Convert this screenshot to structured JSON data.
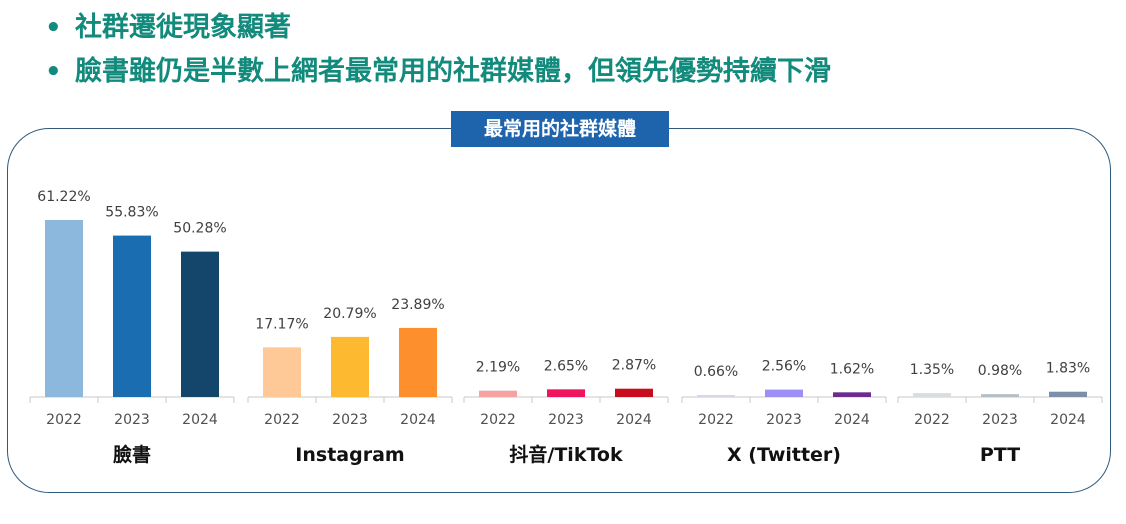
{
  "bullets": [
    {
      "marker": "•",
      "text": "社群遷徙現象顯著"
    },
    {
      "marker": "•",
      "text": "臉書雖仍是半數上網者最常用的社群媒體，但領先優勢持續下滑"
    }
  ],
  "chart_data": {
    "type": "bar",
    "title": "最常用的社群媒體",
    "groups": [
      {
        "name": "臉書",
        "categories": [
          "2022",
          "2023",
          "2024"
        ],
        "values": [
          61.22,
          55.83,
          50.28
        ],
        "labels": [
          "61.22%",
          "55.83%",
          "50.28%"
        ],
        "colors": [
          "#8db8de",
          "#1a6db0",
          "#14466c"
        ]
      },
      {
        "name": "Instagram",
        "categories": [
          "2022",
          "2023",
          "2024"
        ],
        "values": [
          17.17,
          20.79,
          23.89
        ],
        "labels": [
          "17.17%",
          "20.79%",
          "23.89%"
        ],
        "colors": [
          "#fec997",
          "#fdb92f",
          "#fd8f2c"
        ]
      },
      {
        "name": "抖音/TikTok",
        "categories": [
          "2022",
          "2023",
          "2024"
        ],
        "values": [
          2.19,
          2.65,
          2.87
        ],
        "labels": [
          "2.19%",
          "2.65%",
          "2.87%"
        ],
        "colors": [
          "#f7a2a2",
          "#f0135e",
          "#c70c1d"
        ]
      },
      {
        "name": "X (Twitter)",
        "categories": [
          "2022",
          "2023",
          "2024"
        ],
        "values": [
          0.66,
          2.56,
          1.62
        ],
        "labels": [
          "0.66%",
          "2.56%",
          "1.62%"
        ],
        "colors": [
          "#d7d7ec",
          "#9e8ff7",
          "#6d2a90"
        ]
      },
      {
        "name": "PTT",
        "categories": [
          "2022",
          "2023",
          "2024"
        ],
        "values": [
          1.35,
          0.98,
          1.83
        ],
        "labels": [
          "1.35%",
          "0.98%",
          "1.83%"
        ],
        "colors": [
          "#d8dde0",
          "#b3bec7",
          "#7b90a8"
        ]
      }
    ],
    "ylim": [
      0,
      61.22
    ],
    "grid": false
  }
}
